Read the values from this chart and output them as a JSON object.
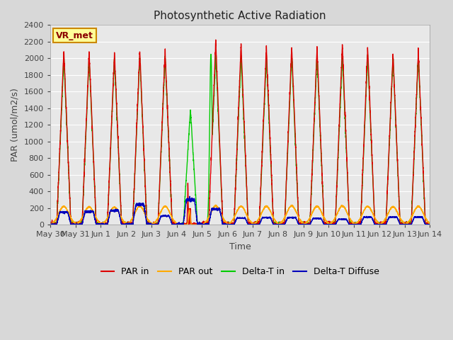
{
  "title": "Photosynthetic Active Radiation",
  "xlabel": "Time",
  "ylabel": "PAR (umol/m2/s)",
  "ylim": [
    0,
    2400
  ],
  "yticks": [
    0,
    200,
    400,
    600,
    800,
    1000,
    1200,
    1400,
    1600,
    1800,
    2000,
    2200,
    2400
  ],
  "fig_bg_color": "#d8d8d8",
  "plot_bg_color": "#e8e8e8",
  "grid_color": "#ffffff",
  "legend_labels": [
    "PAR in",
    "PAR out",
    "Delta-T in",
    "Delta-T Diffuse"
  ],
  "legend_colors": [
    "#dd0000",
    "#ffaa00",
    "#00cc00",
    "#0000bb"
  ],
  "annotation_text": "VR_met",
  "annotation_box_color": "#ffff99",
  "annotation_box_edge": "#cc8800",
  "tick_labels": [
    "May 30",
    "May 31",
    "Jun 1",
    "Jun 2",
    "Jun 3",
    "Jun 4",
    "Jun 5",
    "Jun 6",
    "Jun 7",
    "Jun 8",
    "Jun 9",
    "Jun 10",
    "Jun 11",
    "Jun 12",
    "Jun 13",
    "Jun 14"
  ],
  "n_days": 15,
  "ppd": 288,
  "par_in_peaks": [
    2100,
    2080,
    2060,
    2090,
    2090,
    480,
    2200,
    2170,
    2130,
    2140,
    2120,
    2170,
    2130,
    2060,
    2080
  ],
  "par_out_peaks": [
    220,
    215,
    210,
    220,
    220,
    35,
    225,
    220,
    220,
    225,
    220,
    225,
    220,
    215,
    220
  ],
  "delta_t_in_peaks": [
    2020,
    2010,
    2010,
    2030,
    2030,
    1380,
    2050,
    2030,
    2020,
    2040,
    2030,
    2040,
    2030,
    2010,
    2030
  ],
  "delta_t_diff_flat": [
    150,
    160,
    170,
    240,
    105,
    300,
    185,
    80,
    85,
    85,
    75,
    65,
    90,
    90,
    90
  ],
  "title_fontsize": 11,
  "axis_label_fontsize": 9,
  "tick_fontsize": 8,
  "legend_fontsize": 9,
  "linewidth": 1.0
}
